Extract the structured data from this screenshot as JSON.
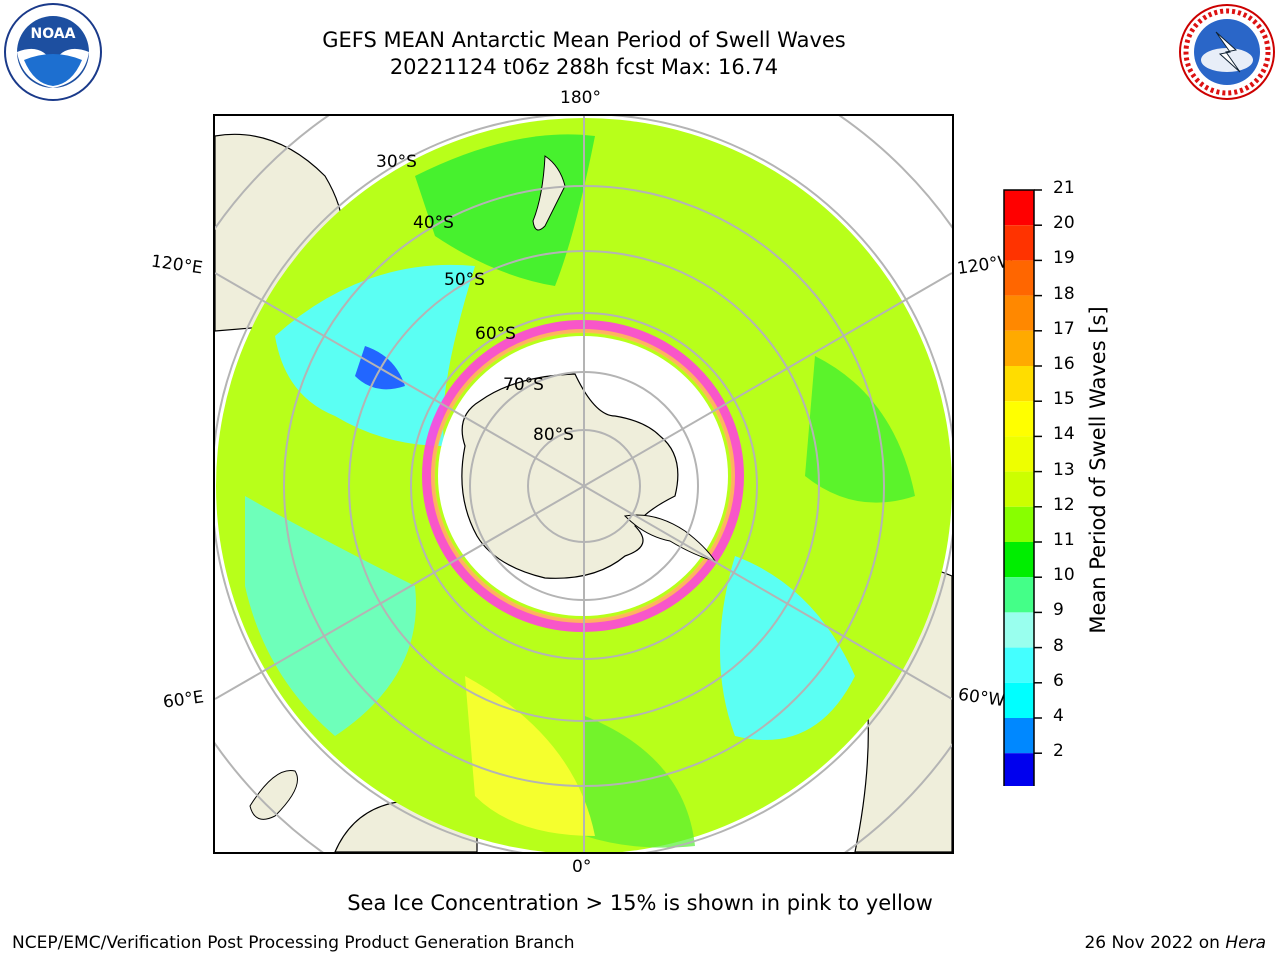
{
  "header": {
    "title_line1": "GEFS MEAN Antarctic Mean Period of Swell Waves",
    "title_line2": "20221124 t06z 288h fcst   Max: 16.74"
  },
  "logos": {
    "left": {
      "icon": "noaa-logo",
      "text": "NOAA"
    },
    "right": {
      "icon": "nws-logo"
    }
  },
  "map": {
    "projection": "south-polar-stereographic",
    "longitude_labels": {
      "top": "180°",
      "bottom": "0°",
      "left_upper": "120°E",
      "left_lower": "60°E",
      "right_upper": "120°W",
      "right_lower": "60°W"
    },
    "latitude_labels": [
      "30°S",
      "40°S",
      "50°S",
      "60°S",
      "70°S",
      "80°S"
    ],
    "colors": {
      "land": "#efeedb",
      "ocean_outside": "#ffffff",
      "grid": "#b4b4b4",
      "sea_ice": "#ff44dd"
    }
  },
  "colorbar": {
    "label": "Mean Period of Swell Waves [s]",
    "ticks": [
      "21",
      "20",
      "19",
      "18",
      "17",
      "16",
      "15",
      "14",
      "13",
      "12",
      "11",
      "10",
      "9",
      "8",
      "6",
      "4",
      "2"
    ],
    "colors": [
      "#ff0000",
      "#ff3300",
      "#ff6600",
      "#ff8800",
      "#ffaa00",
      "#ffdd00",
      "#ffff00",
      "#eeff00",
      "#ccff00",
      "#88ff00",
      "#00ee00",
      "#44ff88",
      "#99ffee",
      "#44ffff",
      "#00ffff",
      "#0088ff",
      "#0000ee"
    ],
    "extend_color": "#0000ff"
  },
  "note": "Sea Ice Concentration > 15% is shown in pink to yellow",
  "footer": {
    "left": "NCEP/EMC/Verification Post Processing Product Generation Branch",
    "date": "26 Nov 2022 on ",
    "machine": "Hera"
  }
}
